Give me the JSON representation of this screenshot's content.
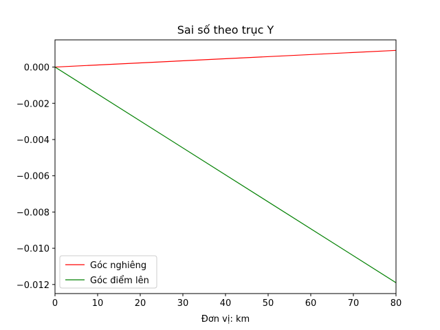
{
  "chart_data": {
    "type": "line",
    "title": "Sai số theo trục Y",
    "xlabel": "Đơn vị: km",
    "ylabel": "",
    "xlim": [
      0,
      80
    ],
    "ylim": [
      -0.0125,
      0.0015
    ],
    "xticks": [
      0,
      10,
      20,
      30,
      40,
      50,
      60,
      70,
      80
    ],
    "xtick_labels": [
      "0",
      "10",
      "20",
      "30",
      "40",
      "50",
      "60",
      "70",
      "80"
    ],
    "yticks": [
      0.0,
      -0.002,
      -0.004,
      -0.006,
      -0.008,
      -0.01,
      -0.012
    ],
    "ytick_labels": [
      "0.000",
      "−0.002",
      "−0.004",
      "−0.006",
      "−0.008",
      "−0.010",
      "−0.012"
    ],
    "grid": false,
    "legend_position": "lower-left",
    "series": [
      {
        "name": "Góc nghiêng",
        "color": "#ff0000",
        "x": [
          0,
          80
        ],
        "y": [
          0.0,
          0.00092
        ]
      },
      {
        "name": "Góc điểm lên",
        "color": "#008000",
        "x": [
          0,
          80
        ],
        "y": [
          0.0,
          -0.0119
        ]
      }
    ]
  }
}
